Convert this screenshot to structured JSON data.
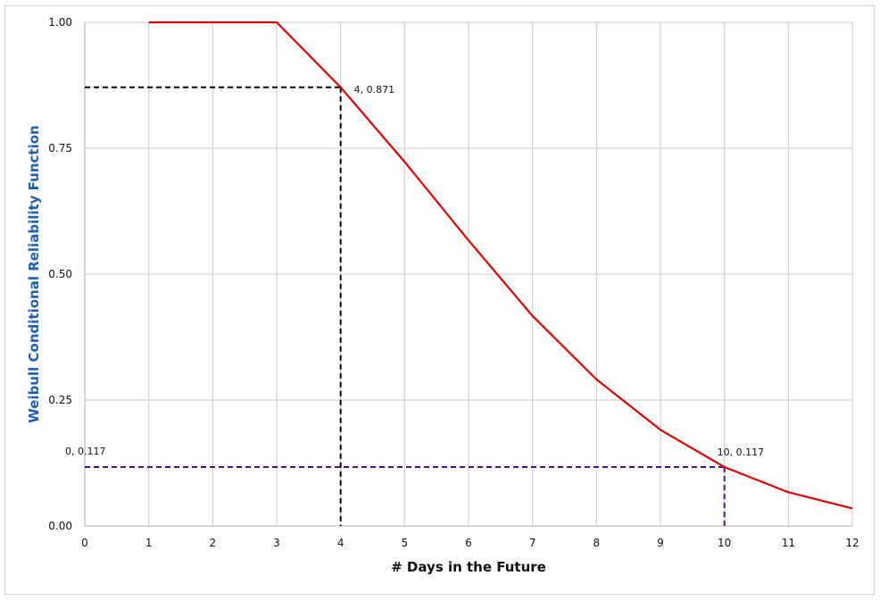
{
  "chart_data": {
    "type": "line",
    "title": "",
    "xlabel": "# Days in the Future",
    "ylabel": "Weibull Conditional Reliability Function",
    "xlim": [
      0,
      12
    ],
    "ylim": [
      0,
      1
    ],
    "x_ticks": [
      "0",
      "1",
      "2",
      "3",
      "4",
      "5",
      "6",
      "7",
      "8",
      "9",
      "10",
      "11",
      "12"
    ],
    "y_ticks": [
      "0.00",
      "0.25",
      "0.50",
      "0.75",
      "1.00"
    ],
    "grid": true,
    "legend": null,
    "series": [
      {
        "name": "Weibull Conditional Reliability",
        "color": "#e00000",
        "x": [
          1,
          2,
          3,
          4,
          5,
          6,
          7,
          8,
          9,
          10,
          11,
          12
        ],
        "values": [
          1.0,
          1.0,
          1.0,
          0.871,
          0.723,
          0.567,
          0.417,
          0.291,
          0.191,
          0.117,
          0.067,
          0.035
        ]
      }
    ],
    "reference_lines": [
      {
        "name": "day-4-marker",
        "color": "#000000",
        "style": "dashed",
        "x": 4,
        "y": 0.871
      },
      {
        "name": "day-10-marker",
        "color": "#4b0f9e",
        "style": "dashed",
        "x": 10,
        "y": 0.117
      }
    ],
    "annotations": [
      {
        "text": "4, 0.871",
        "x": 4,
        "y": 0.871
      },
      {
        "text": "0, 0.117",
        "x": 0,
        "y": 0.117
      },
      {
        "text": "10, 0.117",
        "x": 10,
        "y": 0.117
      }
    ]
  }
}
